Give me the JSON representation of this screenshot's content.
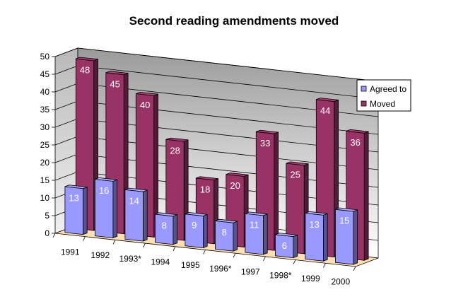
{
  "chart_data": {
    "type": "bar",
    "variant": "3d-clustered-column",
    "title": "Second reading amendments moved",
    "categories": [
      "1991",
      "1992",
      "1993*",
      "1994",
      "1995",
      "1996*",
      "1997",
      "1998*",
      "1999",
      "2000"
    ],
    "series": [
      {
        "name": "Agreed to",
        "values": [
          13,
          16,
          14,
          8,
          9,
          8,
          11,
          6,
          13,
          15
        ],
        "color": "#9999ff"
      },
      {
        "name": "Moved",
        "values": [
          48,
          45,
          40,
          28,
          18,
          20,
          33,
          25,
          44,
          36
        ],
        "color": "#993366"
      }
    ],
    "y_ticks": [
      "0",
      "5",
      "10",
      "15",
      "20",
      "25",
      "30",
      "35",
      "40",
      "45",
      "50"
    ],
    "ylim": [
      0,
      50
    ],
    "grid": true,
    "legend_position": "right",
    "wall_color": "#c0c0c0",
    "floor_color": "#ffe0b0"
  }
}
